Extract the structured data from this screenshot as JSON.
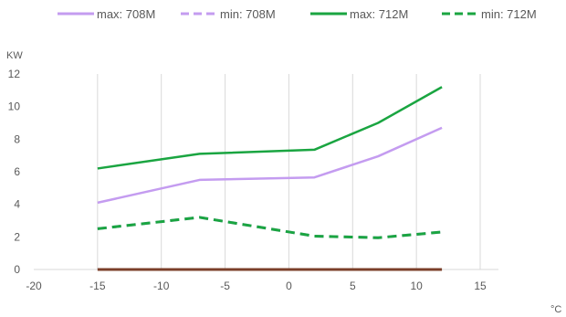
{
  "chart_data": {
    "type": "line",
    "ylabel": "KW",
    "xlabel": "°C",
    "xlim": [
      -20,
      15
    ],
    "ylim": [
      0,
      12
    ],
    "x_ticks": [
      -20,
      -15,
      -10,
      -5,
      0,
      5,
      10,
      15
    ],
    "y_ticks": [
      0,
      2,
      4,
      6,
      8,
      10,
      12
    ],
    "grid": "vertical",
    "legend_position": "top",
    "series": [
      {
        "name": "max: 708M",
        "color": "#c49cf0",
        "dash": "solid",
        "x": [
          -15,
          -7,
          2,
          7,
          12
        ],
        "y": [
          4.1,
          5.5,
          5.65,
          6.95,
          8.7
        ]
      },
      {
        "name": "min: 708M",
        "color": "#c49cf0",
        "dash": "dashed",
        "x": [
          -15,
          -7,
          2,
          7,
          12
        ],
        "y": [
          2.5,
          3.2,
          2.05,
          1.95,
          2.3
        ]
      },
      {
        "name": "max: 712M",
        "color": "#1aa541",
        "dash": "solid",
        "x": [
          -15,
          -7,
          2,
          7,
          12
        ],
        "y": [
          6.2,
          7.1,
          7.35,
          9.0,
          11.2
        ]
      },
      {
        "name": "min: 712M",
        "color": "#1aa541",
        "dash": "dashed",
        "x": [
          -15,
          -7,
          2,
          7,
          12
        ],
        "y": [
          2.5,
          3.2,
          2.05,
          1.95,
          2.3
        ]
      }
    ],
    "baseline": {
      "color": "#7b3f2a",
      "x": [
        -15,
        12
      ],
      "y": [
        0,
        0
      ]
    }
  }
}
